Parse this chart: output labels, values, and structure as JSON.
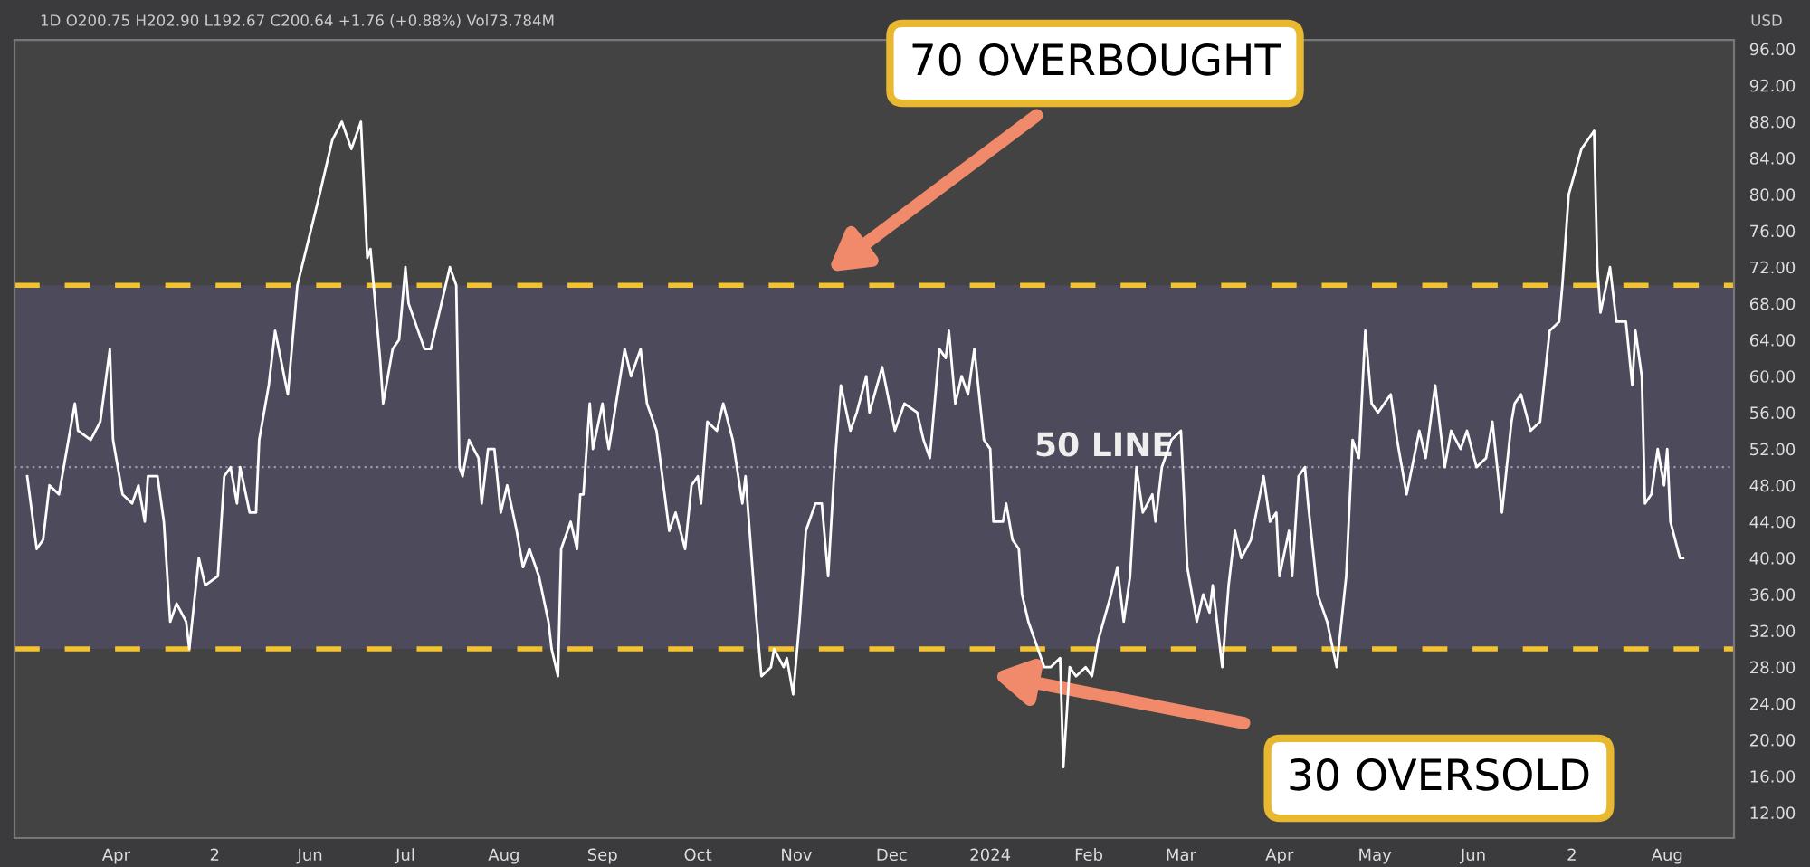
{
  "chart_data": {
    "type": "line",
    "x": [
      "2023-03-04",
      "2023-03-07",
      "2023-03-09",
      "2023-03-11",
      "2023-03-14",
      "2023-03-15",
      "2023-03-19",
      "2023-03-20",
      "2023-03-24",
      "2023-03-27",
      "2023-03-30",
      "2023-03-31",
      "2023-04-03",
      "2023-04-06",
      "2023-04-08",
      "2023-04-10",
      "2023-04-11",
      "2023-04-14",
      "2023-04-16",
      "2023-04-18",
      "2023-04-20",
      "2023-04-23",
      "2023-04-24",
      "2023-04-27",
      "2023-04-29",
      "2023-05-03",
      "2023-05-05",
      "2023-05-07",
      "2023-05-09",
      "2023-05-10",
      "2023-05-13",
      "2023-05-15",
      "2023-05-16",
      "2023-05-19",
      "2023-05-21",
      "2023-05-25",
      "2023-05-28",
      "2023-06-04",
      "2023-06-08",
      "2023-06-11",
      "2023-06-14",
      "2023-06-17",
      "2023-06-19",
      "2023-06-20",
      "2023-06-23",
      "2023-06-24",
      "2023-06-27",
      "2023-06-29",
      "2023-07-01",
      "2023-07-02",
      "2023-07-07",
      "2023-07-09",
      "2023-07-15",
      "2023-07-17",
      "2023-07-18",
      "2023-07-19",
      "2023-07-21",
      "2023-07-24",
      "2023-07-25",
      "2023-07-27",
      "2023-07-29",
      "2023-07-31",
      "2023-08-02",
      "2023-08-05",
      "2023-08-07",
      "2023-08-09",
      "2023-08-12",
      "2023-08-15",
      "2023-08-16",
      "2023-08-18",
      "2023-08-19",
      "2023-08-22",
      "2023-08-24",
      "2023-08-25",
      "2023-08-26",
      "2023-08-28",
      "2023-08-29",
      "2023-09-01",
      "2023-09-02",
      "2023-09-03",
      "2023-09-08",
      "2023-09-10",
      "2023-09-13",
      "2023-09-15",
      "2023-09-18",
      "2023-09-22",
      "2023-09-24",
      "2023-09-27",
      "2023-09-29",
      "2023-10-01",
      "2023-10-02",
      "2023-10-04",
      "2023-10-07",
      "2023-10-09",
      "2023-10-12",
      "2023-10-15",
      "2023-10-16",
      "2023-10-19",
      "2023-10-21",
      "2023-10-24",
      "2023-10-25",
      "2023-10-28",
      "2023-10-29",
      "2023-10-31",
      "2023-11-02",
      "2023-11-04",
      "2023-11-05",
      "2023-11-07",
      "2023-11-09",
      "2023-11-11",
      "2023-11-13",
      "2023-11-15",
      "2023-11-18",
      "2023-11-20",
      "2023-11-23",
      "2023-11-24",
      "2023-11-28",
      "2023-12-02",
      "2023-12-05",
      "2023-12-09",
      "2023-12-11",
      "2023-12-13",
      "2023-12-16",
      "2023-12-18",
      "2023-12-19",
      "2023-12-21",
      "2023-12-23",
      "2023-12-25",
      "2023-12-27",
      "2023-12-30",
      "2024-01-01",
      "2024-01-02",
      "2024-01-05",
      "2024-01-06",
      "2024-01-08",
      "2024-01-10",
      "2024-01-11",
      "2024-01-13",
      "2024-01-15",
      "2024-01-18",
      "2024-01-20",
      "2024-01-23",
      "2024-01-24",
      "2024-01-26",
      "2024-01-28",
      "2024-01-31",
      "2024-02-02",
      "2024-02-04",
      "2024-02-08",
      "2024-02-10",
      "2024-02-12",
      "2024-02-14",
      "2024-02-16",
      "2024-02-18",
      "2024-02-21",
      "2024-02-22",
      "2024-02-24",
      "2024-02-27",
      "2024-03-01",
      "2024-03-03",
      "2024-03-06",
      "2024-03-08",
      "2024-03-10",
      "2024-03-11",
      "2024-03-14",
      "2024-03-16",
      "2024-03-18",
      "2024-03-20",
      "2024-03-23",
      "2024-03-27",
      "2024-03-29",
      "2024-03-31",
      "2024-04-01",
      "2024-04-04",
      "2024-04-05",
      "2024-04-07",
      "2024-04-09",
      "2024-04-10",
      "2024-04-13",
      "2024-04-16",
      "2024-04-19",
      "2024-04-22",
      "2024-04-24",
      "2024-04-26",
      "2024-04-28",
      "2024-04-30",
      "2024-05-02",
      "2024-05-06",
      "2024-05-08",
      "2024-05-11",
      "2024-05-15",
      "2024-05-17",
      "2024-05-20",
      "2024-05-23",
      "2024-05-25",
      "2024-05-28",
      "2024-05-30",
      "2024-06-02",
      "2024-06-05",
      "2024-06-07",
      "2024-06-10",
      "2024-06-13",
      "2024-06-14",
      "2024-06-16",
      "2024-06-19",
      "2024-06-22",
      "2024-06-25",
      "2024-06-28",
      "2024-06-29",
      "2024-07-01",
      "2024-07-05",
      "2024-07-07",
      "2024-07-09",
      "2024-07-10",
      "2024-07-11",
      "2024-07-14",
      "2024-07-16",
      "2024-07-19",
      "2024-07-21",
      "2024-07-22",
      "2024-07-24",
      "2024-07-25",
      "2024-07-27",
      "2024-07-29",
      "2024-07-31",
      "2024-08-01",
      "2024-08-02",
      "2024-08-05",
      "2024-08-06"
    ],
    "series": [
      {
        "color": "#ffffff",
        "values": [
          49,
          41,
          42,
          48,
          47,
          49,
          57,
          54,
          53,
          55,
          63,
          53,
          47,
          46,
          48,
          44,
          49,
          49,
          44,
          33,
          35,
          33,
          30,
          40,
          37,
          38,
          49,
          50,
          46,
          50,
          45,
          45,
          53,
          59,
          65,
          58,
          70,
          80,
          86,
          88,
          85,
          88,
          73,
          74,
          62,
          57,
          63,
          64,
          72,
          68,
          63,
          63,
          72,
          70,
          50,
          49,
          53,
          51,
          46,
          52,
          52,
          45,
          48,
          43,
          39,
          41,
          38,
          33,
          30,
          27,
          41,
          44,
          41,
          47,
          47,
          57,
          52,
          57,
          54,
          52,
          63,
          60,
          63,
          57,
          54,
          43,
          45,
          41,
          48,
          49,
          46,
          55,
          54,
          57,
          53,
          46,
          49,
          35,
          27,
          28,
          30,
          28,
          29,
          25,
          33,
          43,
          44,
          46,
          46,
          38,
          50,
          59,
          54,
          56,
          60,
          56,
          61,
          54,
          57,
          56,
          53,
          51,
          63,
          62,
          65,
          57,
          60,
          58,
          63,
          53,
          52,
          44,
          44,
          46,
          42,
          41,
          36,
          33,
          31,
          28,
          28,
          29,
          17,
          28,
          27,
          28,
          27,
          31,
          36,
          39,
          33,
          38,
          50,
          45,
          47,
          44,
          50,
          53,
          54,
          39,
          33,
          36,
          34,
          37,
          28,
          37,
          43,
          40,
          42,
          49,
          44,
          45,
          38,
          43,
          38,
          49,
          50,
          46,
          36,
          33,
          28,
          38,
          53,
          51,
          65,
          57,
          56,
          58,
          53,
          47,
          54,
          51,
          59,
          50,
          54,
          52,
          54,
          50,
          51,
          55,
          45,
          55,
          57,
          58,
          54,
          55,
          65,
          66,
          70,
          80,
          85,
          86,
          87,
          72,
          67,
          72,
          66,
          66,
          59,
          65,
          60,
          46,
          47,
          52,
          48,
          52,
          44,
          40,
          40
        ]
      }
    ],
    "xlim": [
      "2023-02-28",
      "2024-08-22"
    ],
    "xticks": [
      {
        "value": "2023-04-01",
        "label": "Apr"
      },
      {
        "value": "2023-05-02",
        "label": "2"
      },
      {
        "value": "2023-06-01",
        "label": "Jun"
      },
      {
        "value": "2023-07-01",
        "label": "Jul"
      },
      {
        "value": "2023-08-01",
        "label": "Aug"
      },
      {
        "value": "2023-09-01",
        "label": "Sep"
      },
      {
        "value": "2023-10-01",
        "label": "Oct"
      },
      {
        "value": "2023-11-01",
        "label": "Nov"
      },
      {
        "value": "2023-12-01",
        "label": "Dec"
      },
      {
        "value": "2024-01-01",
        "label": "2024"
      },
      {
        "value": "2024-02-01",
        "label": "Feb"
      },
      {
        "value": "2024-03-01",
        "label": "Mar"
      },
      {
        "value": "2024-04-01",
        "label": "Apr"
      },
      {
        "value": "2024-05-01",
        "label": "May"
      },
      {
        "value": "2024-06-01",
        "label": "Jun"
      },
      {
        "value": "2024-07-02",
        "label": "2"
      },
      {
        "value": "2024-08-01",
        "label": "Aug"
      }
    ],
    "ylim": [
      9.2,
      97
    ],
    "yticks": [
      {
        "value": 12,
        "label": "12.00"
      },
      {
        "value": 16,
        "label": "16.00"
      },
      {
        "value": 20,
        "label": "20.00"
      },
      {
        "value": 24,
        "label": "24.00"
      },
      {
        "value": 28,
        "label": "28.00"
      },
      {
        "value": 32,
        "label": "32.00"
      },
      {
        "value": 36,
        "label": "36.00"
      },
      {
        "value": 40,
        "label": "40.00"
      },
      {
        "value": 44,
        "label": "44.00"
      },
      {
        "value": 48,
        "label": "48.00"
      },
      {
        "value": 52,
        "label": "52.00"
      },
      {
        "value": 56,
        "label": "56.00"
      },
      {
        "value": 60,
        "label": "60.00"
      },
      {
        "value": 64,
        "label": "64.00"
      },
      {
        "value": 68,
        "label": "68.00"
      },
      {
        "value": 72,
        "label": "72.00"
      },
      {
        "value": 76,
        "label": "76.00"
      },
      {
        "value": 80,
        "label": "80.00"
      },
      {
        "value": 84,
        "label": "84.00"
      },
      {
        "value": 88,
        "label": "88.00"
      },
      {
        "value": 92,
        "label": "92.00"
      },
      {
        "value": 96,
        "label": "96.00"
      }
    ],
    "bands": [
      {
        "axis": "y",
        "from": 30,
        "to": 70,
        "color": "#4d4a5c"
      }
    ],
    "ref_lines": [
      {
        "axis": "y",
        "value": 70,
        "color": "#f2c230",
        "line_style": "dashed"
      },
      {
        "axis": "y",
        "value": 50,
        "color": "#9a9aa8",
        "line_style": "dotted"
      },
      {
        "axis": "y",
        "value": 30,
        "color": "#f2c230",
        "line_style": "dashed"
      }
    ],
    "annotations": [
      "70 OVERBOUGHT",
      "50 LINE",
      "30 OVERSOLD",
      "1D O200.75 H202.90 L192.67 C200.64 +1.76 (+0.88%) Vol73.784M",
      "USD"
    ]
  }
}
